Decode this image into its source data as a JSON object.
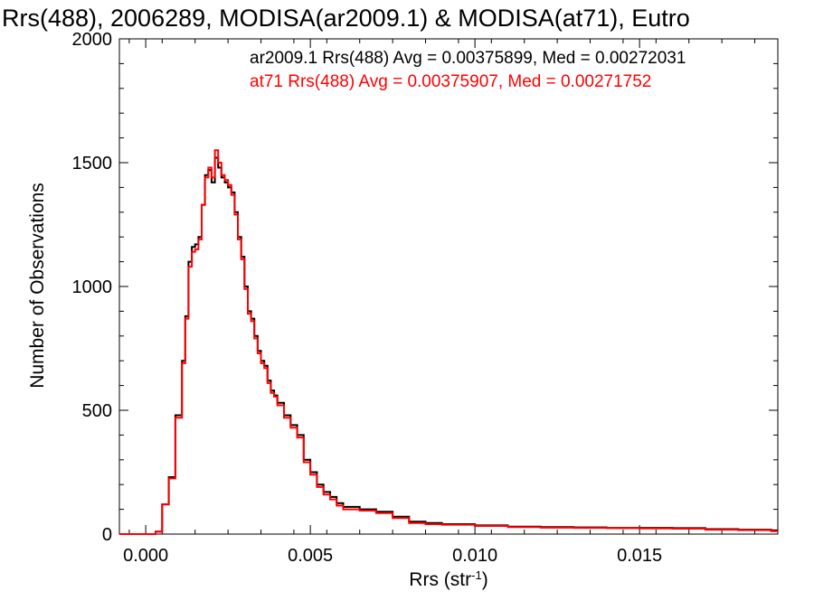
{
  "chart_data": {
    "type": "line",
    "step": true,
    "title": "Rrs(488), 2006289, MODISA(ar2009.1) & MODISA(at71), Eutro",
    "xlabel": "Rrs (str",
    "xlabel_sup": "-1",
    "xlabel_close": ")",
    "ylabel": "Number of Observations",
    "xlim": [
      -0.0008,
      0.0192
    ],
    "ylim": [
      0,
      2000
    ],
    "xticks": [
      0.0,
      0.005,
      0.01,
      0.015
    ],
    "xtick_labels": [
      "0.000",
      "0.005",
      "0.010",
      "0.015"
    ],
    "yticks": [
      0,
      500,
      1000,
      1500,
      2000
    ],
    "ytick_labels": [
      "0",
      "500",
      "1000",
      "1500",
      "2000"
    ],
    "grid": false,
    "annotations": [
      {
        "text": "ar2009.1 Rrs(488) Avg = 0.00375899, Med = 0.00272031",
        "color": "#000000"
      },
      {
        "text": "at71 Rrs(488) Avg = 0.00375907, Med = 0.00271752",
        "color": "#ff0000"
      }
    ],
    "series": [
      {
        "name": "ar2009.1",
        "color": "#000000",
        "points": [
          [
            0.0,
            0
          ],
          [
            0.0003,
            10
          ],
          [
            0.0005,
            120
          ],
          [
            0.0007,
            230
          ],
          [
            0.0009,
            480
          ],
          [
            0.0011,
            700
          ],
          [
            0.0012,
            880
          ],
          [
            0.0013,
            1100
          ],
          [
            0.0014,
            1160
          ],
          [
            0.0015,
            1170
          ],
          [
            0.0016,
            1200
          ],
          [
            0.0017,
            1330
          ],
          [
            0.0018,
            1450
          ],
          [
            0.0019,
            1470
          ],
          [
            0.002,
            1420
          ],
          [
            0.0021,
            1520
          ],
          [
            0.0022,
            1480
          ],
          [
            0.0023,
            1440
          ],
          [
            0.0024,
            1420
          ],
          [
            0.0025,
            1400
          ],
          [
            0.0026,
            1380
          ],
          [
            0.0027,
            1300
          ],
          [
            0.0028,
            1200
          ],
          [
            0.0029,
            1120
          ],
          [
            0.003,
            1000
          ],
          [
            0.0031,
            900
          ],
          [
            0.0032,
            870
          ],
          [
            0.0033,
            800
          ],
          [
            0.0034,
            740
          ],
          [
            0.0035,
            700
          ],
          [
            0.0036,
            680
          ],
          [
            0.0037,
            620
          ],
          [
            0.0038,
            580
          ],
          [
            0.0039,
            560
          ],
          [
            0.004,
            530
          ],
          [
            0.0042,
            480
          ],
          [
            0.0044,
            440
          ],
          [
            0.0046,
            400
          ],
          [
            0.0048,
            300
          ],
          [
            0.005,
            250
          ],
          [
            0.0052,
            200
          ],
          [
            0.0054,
            170
          ],
          [
            0.0056,
            150
          ],
          [
            0.0058,
            125
          ],
          [
            0.006,
            110
          ],
          [
            0.0065,
            100
          ],
          [
            0.007,
            90
          ],
          [
            0.0075,
            70
          ],
          [
            0.008,
            50
          ],
          [
            0.0085,
            45
          ],
          [
            0.009,
            40
          ],
          [
            0.01,
            35
          ],
          [
            0.011,
            30
          ],
          [
            0.012,
            28
          ],
          [
            0.013,
            27
          ],
          [
            0.014,
            25
          ],
          [
            0.015,
            25
          ],
          [
            0.016,
            24
          ],
          [
            0.017,
            20
          ],
          [
            0.018,
            18
          ],
          [
            0.019,
            15
          ]
        ]
      },
      {
        "name": "at71",
        "color": "#ff0000",
        "points": [
          [
            0.0,
            0
          ],
          [
            0.0003,
            10
          ],
          [
            0.0005,
            120
          ],
          [
            0.0007,
            225
          ],
          [
            0.0009,
            470
          ],
          [
            0.0011,
            690
          ],
          [
            0.0012,
            870
          ],
          [
            0.0013,
            1080
          ],
          [
            0.0014,
            1140
          ],
          [
            0.0015,
            1150
          ],
          [
            0.0016,
            1190
          ],
          [
            0.0017,
            1330
          ],
          [
            0.0018,
            1440
          ],
          [
            0.0019,
            1480
          ],
          [
            0.002,
            1440
          ],
          [
            0.0021,
            1550
          ],
          [
            0.0022,
            1500
          ],
          [
            0.0023,
            1450
          ],
          [
            0.0024,
            1430
          ],
          [
            0.0025,
            1410
          ],
          [
            0.0026,
            1370
          ],
          [
            0.0027,
            1290
          ],
          [
            0.0028,
            1190
          ],
          [
            0.0029,
            1110
          ],
          [
            0.003,
            990
          ],
          [
            0.0031,
            890
          ],
          [
            0.0032,
            860
          ],
          [
            0.0033,
            790
          ],
          [
            0.0034,
            730
          ],
          [
            0.0035,
            690
          ],
          [
            0.0036,
            670
          ],
          [
            0.0037,
            610
          ],
          [
            0.0038,
            570
          ],
          [
            0.0039,
            555
          ],
          [
            0.004,
            520
          ],
          [
            0.0042,
            470
          ],
          [
            0.0044,
            430
          ],
          [
            0.0046,
            390
          ],
          [
            0.0048,
            290
          ],
          [
            0.005,
            240
          ],
          [
            0.0052,
            190
          ],
          [
            0.0054,
            160
          ],
          [
            0.0056,
            140
          ],
          [
            0.0058,
            115
          ],
          [
            0.006,
            100
          ],
          [
            0.0065,
            95
          ],
          [
            0.007,
            85
          ],
          [
            0.0075,
            65
          ],
          [
            0.008,
            45
          ],
          [
            0.0085,
            40
          ],
          [
            0.009,
            38
          ],
          [
            0.01,
            33
          ],
          [
            0.011,
            28
          ],
          [
            0.012,
            26
          ],
          [
            0.013,
            25
          ],
          [
            0.014,
            24
          ],
          [
            0.015,
            23
          ],
          [
            0.016,
            22
          ],
          [
            0.017,
            18
          ],
          [
            0.018,
            16
          ],
          [
            0.019,
            12
          ]
        ]
      }
    ]
  }
}
